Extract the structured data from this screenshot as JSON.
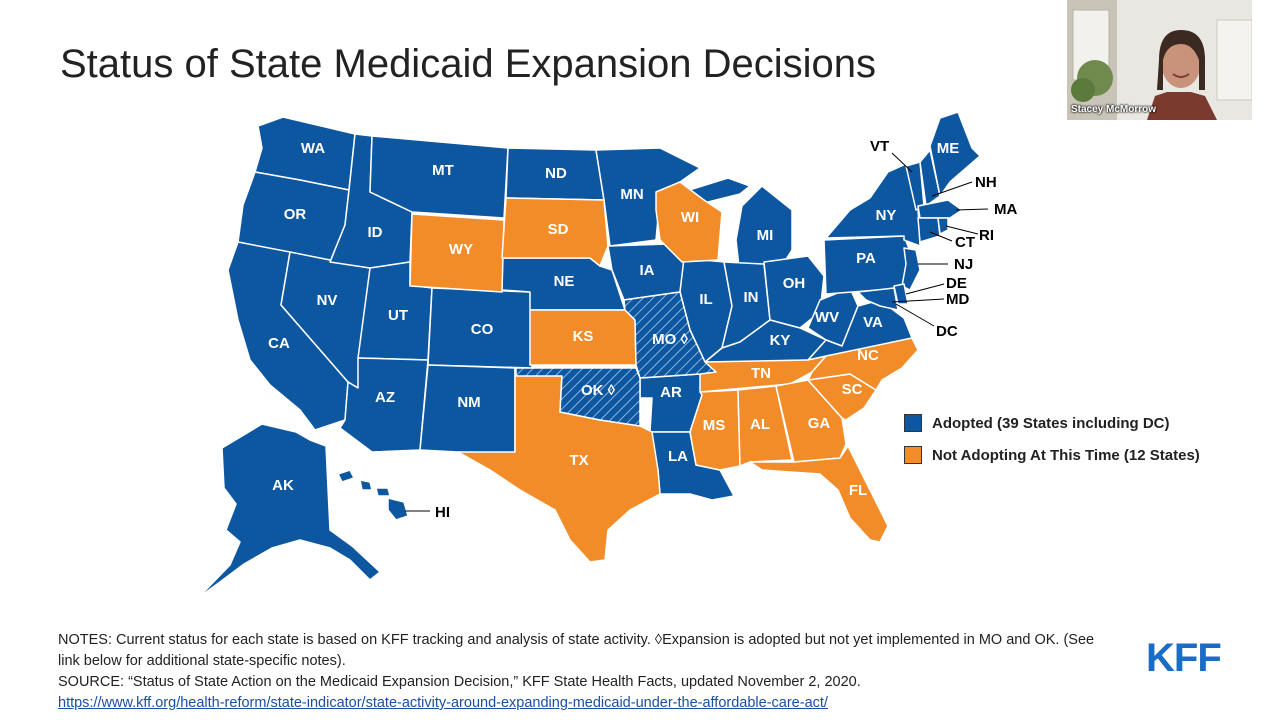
{
  "title": "Status of State Medicaid Expansion Decisions",
  "colors": {
    "adopted": "#0d56a0",
    "not_adopting": "#f28c28",
    "hatch_line": "#8fb4dd"
  },
  "legend": {
    "adopted": "Adopted (39 States including DC)",
    "not_adopting": "Not Adopting At This Time (12 States)"
  },
  "states": {
    "WA": "WA",
    "OR": "OR",
    "CA": "CA",
    "NV": "NV",
    "ID": "ID",
    "MT": "MT",
    "WY": "WY",
    "UT": "UT",
    "AZ": "AZ",
    "CO": "CO",
    "NM": "NM",
    "ND": "ND",
    "SD": "SD",
    "NE": "NE",
    "KS": "KS",
    "OK": "OK ◊",
    "TX": "TX",
    "MN": "MN",
    "IA": "IA",
    "MO": "MO ◊",
    "AR": "AR",
    "LA": "LA",
    "WI": "WI",
    "IL": "IL",
    "MI": "MI",
    "IN": "IN",
    "OH": "OH",
    "KY": "KY",
    "TN": "TN",
    "MS": "MS",
    "AL": "AL",
    "GA": "GA",
    "FL": "FL",
    "SC": "SC",
    "NC": "NC",
    "VA": "VA",
    "WV": "WV",
    "PA": "PA",
    "NY": "NY",
    "ME": "ME",
    "VT": "VT",
    "NH": "NH",
    "MA": "MA",
    "RI": "RI",
    "CT": "CT",
    "NJ": "NJ",
    "DE": "DE",
    "MD": "MD",
    "DC": "DC",
    "AK": "AK",
    "HI": "HI"
  },
  "notes": {
    "line1": "NOTES: Current status for each state is based on KFF tracking and analysis of state activity. ◊Expansion is adopted but not yet implemented in MO and OK. (See link below for additional state-specific notes).",
    "line2": "SOURCE: “Status of State Action on the Medicaid Expansion Decision,” KFF State Health Facts, updated November 2, 2020.",
    "link": "https://www.kff.org/health-reform/state-indicator/state-activity-around-expanding-medicaid-under-the-affordable-care-act/"
  },
  "logo": "KFF",
  "webcam": {
    "name": "Stacey McMorrow"
  }
}
